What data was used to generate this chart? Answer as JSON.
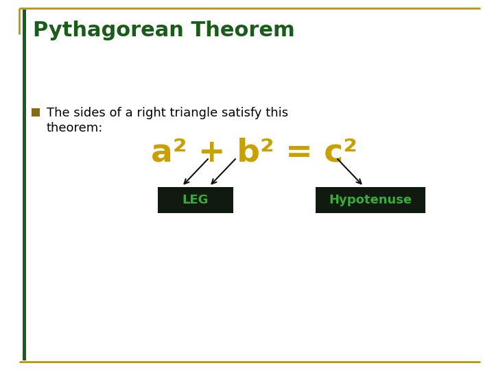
{
  "title": "Pythagorean Theorem",
  "title_color": "#1a5c1a",
  "title_fontsize": 22,
  "bullet_color": "#8B6914",
  "bullet_text_line1": "The sides of a right triangle satisfy this",
  "bullet_text_line2": "theorem:",
  "body_fontsize": 13,
  "eq_color": "#C8A000",
  "eq_fontsize": 34,
  "label_leg": "LEG",
  "label_hyp": "Hypotenuse",
  "label_color": "#3aaa3a",
  "label_bg": "#111a11",
  "label_fontsize": 13,
  "border_color": "#B8960C",
  "bg_color": "#ffffff",
  "left_bar_color": "#1a5c1a",
  "arrow_color": "#111111"
}
